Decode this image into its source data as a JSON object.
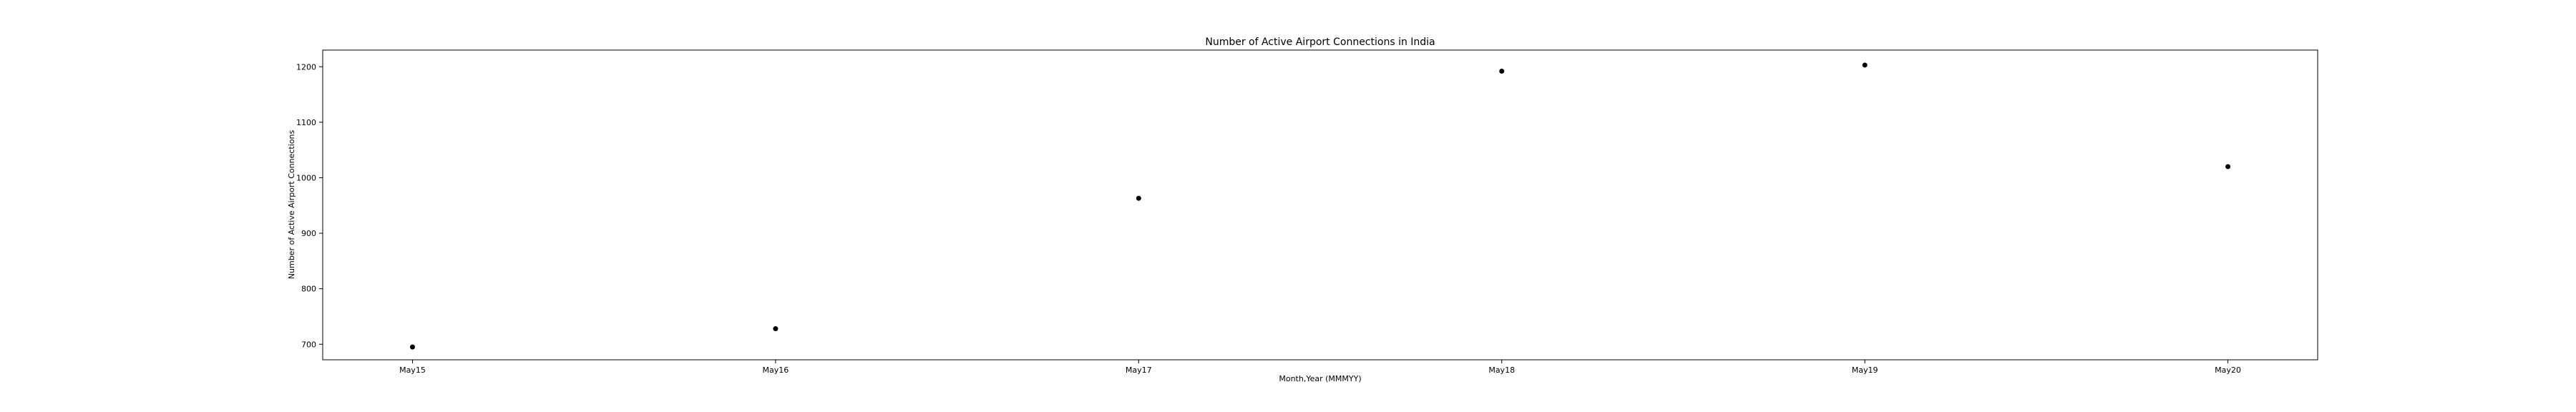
{
  "chart_data": {
    "type": "scatter",
    "title": "Number of Active Airport Connections in India",
    "xlabel": "Month,Year (MMMYY)",
    "ylabel": "Number of Active Airport Connections",
    "categories": [
      "May15",
      "May16",
      "May17",
      "May18",
      "May19",
      "May20"
    ],
    "values": [
      695,
      728,
      963,
      1192,
      1203,
      1020
    ],
    "ylim": [
      672,
      1230
    ],
    "yticks": [
      700,
      800,
      900,
      1000,
      1100,
      1200
    ],
    "grid": false,
    "marker_color": "#000000"
  }
}
